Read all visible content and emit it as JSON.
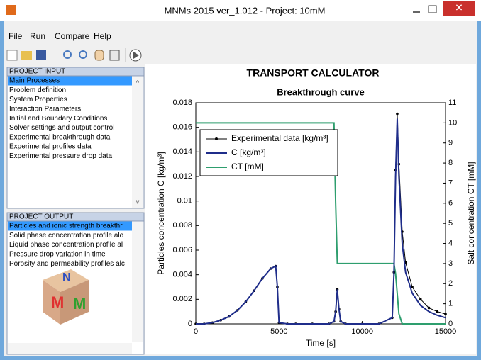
{
  "window": {
    "title": "MNMs 2015 ver_1.012 - Project: 10mM"
  },
  "menu": [
    "File",
    "Run",
    "Compare",
    "Help"
  ],
  "project_input": {
    "title": "PROJECT INPUT",
    "items": [
      "Main Processes",
      "Problem definition",
      "System Properties",
      "Interaction Parameters",
      "Initial and Boundary Conditions",
      "Solver settings and output control",
      "Experimental breakthrough data",
      "Experimental profiles data",
      "Experimental pressure drop data"
    ]
  },
  "project_output": {
    "title": "PROJECT OUTPUT",
    "items": [
      "Particles and ionic strength breakthr",
      "Solid phase concentration profile alo",
      "Liquid phase concentration profile al",
      "Pressure drop variation in time",
      "Porosity and permeability profiles alc"
    ]
  },
  "chart_data": {
    "type": "line",
    "title": "TRANSPORT CALCULATOR",
    "subtitle": "Breakthrough curve",
    "x_label": "Time [s]",
    "y_label": "Particles concentration C [kg/m³]",
    "y2_label": "Salt concentration CT [mM]",
    "x": [
      0,
      500,
      1000,
      1500,
      2000,
      2500,
      3000,
      3500,
      4000,
      4500,
      4800,
      4900,
      5000,
      5500,
      6000,
      7000,
      8000,
      8300,
      8400,
      8500,
      8600,
      8700,
      9000,
      10000,
      11000,
      11800,
      11900,
      12000,
      12100,
      12200,
      12400,
      12600,
      13000,
      13500,
      14000,
      14500,
      15000
    ],
    "series": [
      {
        "name": "Experimental data [kg/m³]",
        "color": "#000000",
        "markers": true,
        "values": [
          0,
          0,
          0.0001,
          0.0003,
          0.0006,
          0.0011,
          0.0018,
          0.0027,
          0.0037,
          0.0045,
          0.0047,
          0.003,
          0.0001,
          0,
          0,
          0,
          0,
          0.0002,
          0.001,
          0.0028,
          0.0012,
          0.0002,
          0,
          0,
          0,
          0.0005,
          0.0042,
          0.0125,
          0.0171,
          0.013,
          0.0075,
          0.005,
          0.003,
          0.002,
          0.0013,
          0.001,
          0.0008
        ]
      },
      {
        "name": "C [kg/m³]",
        "color": "#1f2d8a",
        "markers": false,
        "values": [
          0,
          0,
          0.0001,
          0.0003,
          0.0006,
          0.0011,
          0.0018,
          0.0027,
          0.0037,
          0.0045,
          0.0047,
          0.003,
          0.0001,
          0,
          0,
          0,
          0,
          0.0002,
          0.001,
          0.0028,
          0.0012,
          0.0002,
          0,
          0,
          0,
          0.0005,
          0.004,
          0.012,
          0.0167,
          0.012,
          0.0065,
          0.0042,
          0.0025,
          0.0015,
          0.001,
          0.0007,
          0.0005
        ]
      },
      {
        "name": "CT [mM]",
        "color": "#2e9e6e",
        "markers": false,
        "axis": "y2",
        "values": [
          10,
          10,
          10,
          10,
          10,
          10,
          10,
          10,
          10,
          10,
          10,
          10,
          10,
          10,
          10,
          10,
          10,
          10,
          6,
          3,
          3,
          3,
          3,
          3,
          3,
          3,
          3,
          2.5,
          1.5,
          0.5,
          0,
          0,
          0,
          0,
          0,
          0,
          0
        ]
      }
    ],
    "xlim": [
      0,
      15000
    ],
    "xticks": [
      0,
      5000,
      10000,
      15000
    ],
    "ylim": [
      0,
      0.018
    ],
    "yticks": [
      0,
      0.002,
      0.004,
      0.006,
      0.008,
      0.01,
      0.012,
      0.014,
      0.016,
      0.018
    ],
    "y2lim": [
      0,
      11
    ],
    "y2ticks": [
      0,
      1,
      2,
      3,
      4,
      5,
      6,
      7,
      8,
      9,
      10,
      11
    ],
    "legend": "upper left"
  }
}
